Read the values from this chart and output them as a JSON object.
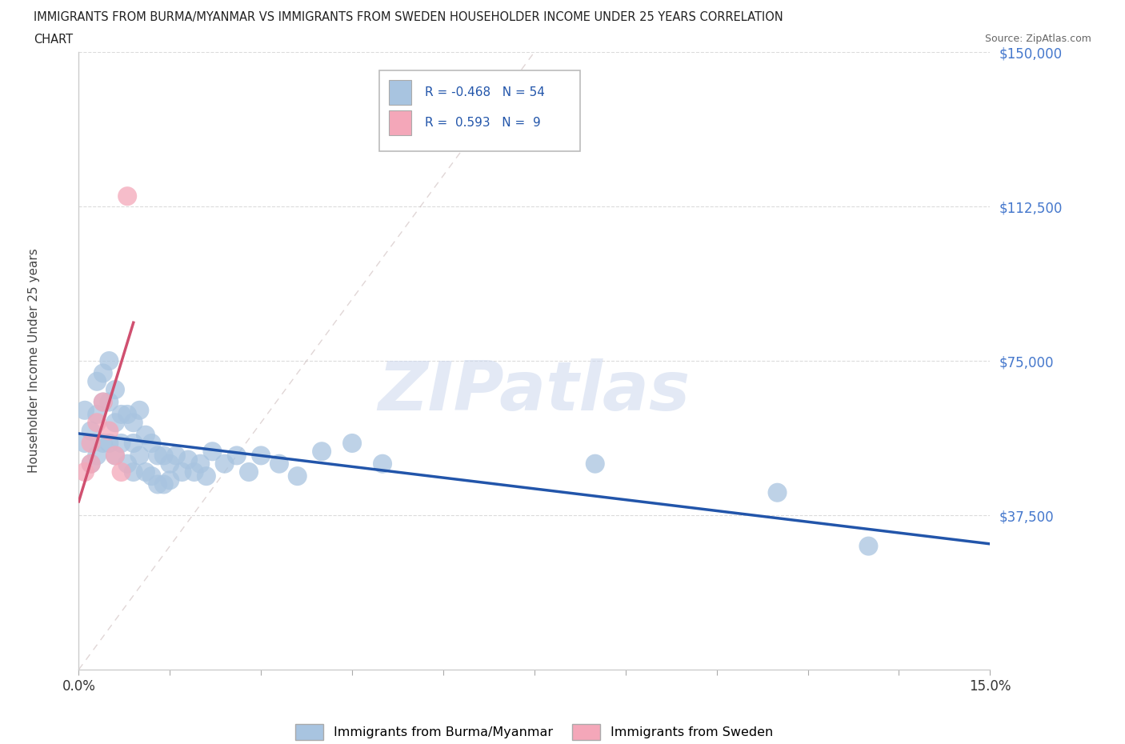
{
  "title_line1": "IMMIGRANTS FROM BURMA/MYANMAR VS IMMIGRANTS FROM SWEDEN HOUSEHOLDER INCOME UNDER 25 YEARS CORRELATION",
  "title_line2": "CHART",
  "source": "Source: ZipAtlas.com",
  "ylabel": "Householder Income Under 25 years",
  "xlim": [
    0.0,
    0.15
  ],
  "ylim": [
    0,
    150000
  ],
  "yticks": [
    0,
    37500,
    75000,
    112500,
    150000
  ],
  "ytick_labels": [
    "",
    "$37,500",
    "$75,000",
    "$112,500",
    "$150,000"
  ],
  "xticks": [
    0.0,
    0.015,
    0.03,
    0.045,
    0.06,
    0.075,
    0.09,
    0.105,
    0.12,
    0.135,
    0.15
  ],
  "burma_R": -0.468,
  "burma_N": 54,
  "sweden_R": 0.593,
  "sweden_N": 9,
  "burma_color": "#a8c4e0",
  "sweden_color": "#f4a7b9",
  "burma_line_color": "#2255aa",
  "sweden_line_color": "#d05070",
  "burma_x": [
    0.001,
    0.001,
    0.002,
    0.002,
    0.003,
    0.003,
    0.003,
    0.004,
    0.004,
    0.004,
    0.005,
    0.005,
    0.005,
    0.006,
    0.006,
    0.006,
    0.007,
    0.007,
    0.008,
    0.008,
    0.009,
    0.009,
    0.009,
    0.01,
    0.01,
    0.011,
    0.011,
    0.012,
    0.012,
    0.013,
    0.013,
    0.014,
    0.014,
    0.015,
    0.015,
    0.016,
    0.017,
    0.018,
    0.019,
    0.02,
    0.021,
    0.022,
    0.024,
    0.026,
    0.028,
    0.03,
    0.033,
    0.036,
    0.04,
    0.045,
    0.05,
    0.085,
    0.115,
    0.13
  ],
  "burma_y": [
    63000,
    55000,
    58000,
    50000,
    70000,
    62000,
    52000,
    72000,
    65000,
    55000,
    75000,
    65000,
    55000,
    68000,
    60000,
    52000,
    62000,
    55000,
    62000,
    50000,
    60000,
    55000,
    48000,
    63000,
    52000,
    57000,
    48000,
    55000,
    47000,
    52000,
    45000,
    52000,
    45000,
    50000,
    46000,
    52000,
    48000,
    51000,
    48000,
    50000,
    47000,
    53000,
    50000,
    52000,
    48000,
    52000,
    50000,
    47000,
    53000,
    55000,
    50000,
    50000,
    43000,
    30000
  ],
  "sweden_x": [
    0.001,
    0.002,
    0.002,
    0.003,
    0.004,
    0.005,
    0.006,
    0.007,
    0.008
  ],
  "sweden_y": [
    48000,
    55000,
    50000,
    60000,
    65000,
    58000,
    52000,
    48000,
    115000
  ],
  "legend_burma": "Immigrants from Burma/Myanmar",
  "legend_sweden": "Immigrants from Sweden"
}
